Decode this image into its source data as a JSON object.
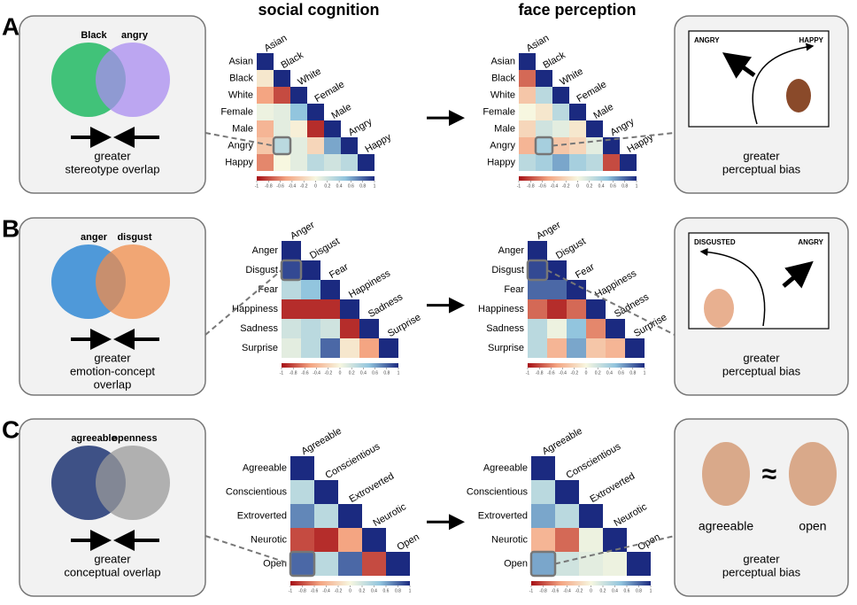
{
  "headers": [
    "social cognition",
    "face perception"
  ],
  "colorbar_ticks": [
    -1,
    -0.8,
    -0.6,
    -0.4,
    -0.2,
    0,
    0.2,
    0.4,
    0.6,
    0.8,
    1
  ],
  "panels": [
    {
      "letter": "A",
      "venn": {
        "labels": [
          "Black",
          "angry"
        ],
        "colors": [
          "#2ebd6b",
          "#a98cf0"
        ]
      },
      "caption": [
        "greater",
        "stereotype overlap"
      ],
      "labels": [
        "Asian",
        "Black",
        "White",
        "Female",
        "Male",
        "Angry",
        "Happy"
      ],
      "social": [
        [
          1
        ],
        [
          -0.1,
          1
        ],
        [
          -0.5,
          -0.8,
          1
        ],
        [
          0.05,
          0.1,
          0.5,
          1
        ],
        [
          -0.4,
          0.1,
          -0.05,
          -0.9,
          1
        ],
        [
          -0.3,
          0.3,
          0.1,
          -0.2,
          0.6,
          1
        ],
        [
          -0.6,
          0,
          0.1,
          0.3,
          0.2,
          0.3,
          1
        ]
      ],
      "face": [
        [
          1
        ],
        [
          -0.7,
          1
        ],
        [
          -0.3,
          0.3,
          1
        ],
        [
          0,
          -0.1,
          0.3,
          1
        ],
        [
          -0.2,
          0.2,
          0.1,
          -0.1,
          1
        ],
        [
          -0.4,
          0.4,
          -0.3,
          -0.2,
          0.1,
          1
        ],
        [
          0.3,
          0.4,
          0.6,
          0.4,
          0.3,
          -0.8,
          1
        ]
      ],
      "highlight": [
        5,
        1
      ],
      "bias": {
        "labels": [
          "ANGRY",
          "HAPPY"
        ],
        "caption": [
          "greater",
          "perceptual bias"
        ]
      }
    },
    {
      "letter": "B",
      "venn": {
        "labels": [
          "anger",
          "disgust"
        ],
        "colors": [
          "#3d8fd6",
          "#f08c4a"
        ]
      },
      "caption": [
        "greater",
        "emotion-concept",
        "overlap"
      ],
      "labels": [
        "Anger",
        "Disgust",
        "Fear",
        "Happiness",
        "Sadness",
        "Surprise"
      ],
      "social": [
        [
          1
        ],
        [
          0.9,
          1
        ],
        [
          0.3,
          0.5,
          1
        ],
        [
          -0.9,
          -0.9,
          -0.9,
          1
        ],
        [
          0.2,
          0.3,
          0.2,
          -0.9,
          1
        ],
        [
          0.1,
          0.3,
          0.8,
          -0.1,
          -0.5,
          1
        ]
      ],
      "face": [
        [
          1
        ],
        [
          0.9,
          1
        ],
        [
          0.8,
          0.8,
          1
        ],
        [
          -0.7,
          -0.9,
          -0.7,
          1
        ],
        [
          0.3,
          0.05,
          0.5,
          -0.6,
          1
        ],
        [
          0.3,
          -0.4,
          0.6,
          -0.3,
          -0.4,
          1
        ]
      ],
      "highlight": [
        1,
        0
      ],
      "bias": {
        "labels": [
          "DISGUSTED",
          "ANGRY"
        ],
        "caption": [
          "greater",
          "perceptual bias"
        ]
      }
    },
    {
      "letter": "C",
      "venn": {
        "labels": [
          "agreeable",
          "openness"
        ],
        "colors": [
          "#2a3f7a",
          "#9a9a9a"
        ]
      },
      "caption": [
        "greater",
        "conceptual overlap"
      ],
      "labels": [
        "Agreeable",
        "Conscientious",
        "Extroverted",
        "Neurotic",
        "Open"
      ],
      "social": [
        [
          1
        ],
        [
          0.3,
          1
        ],
        [
          0.7,
          0.3,
          1
        ],
        [
          -0.8,
          -0.9,
          -0.5,
          1
        ],
        [
          0.8,
          0.3,
          0.8,
          -0.8,
          1
        ]
      ],
      "face": [
        [
          1
        ],
        [
          0.3,
          1
        ],
        [
          0.6,
          0.3,
          1
        ],
        [
          -0.4,
          -0.7,
          0.05,
          1
        ],
        [
          0.6,
          0.2,
          0.1,
          0.05,
          1
        ]
      ],
      "highlight": [
        4,
        0
      ],
      "bias": {
        "labels": [
          "agreeable",
          "open"
        ],
        "symbol": "≈",
        "caption": [
          "greater",
          "perceptual bias"
        ]
      }
    }
  ]
}
